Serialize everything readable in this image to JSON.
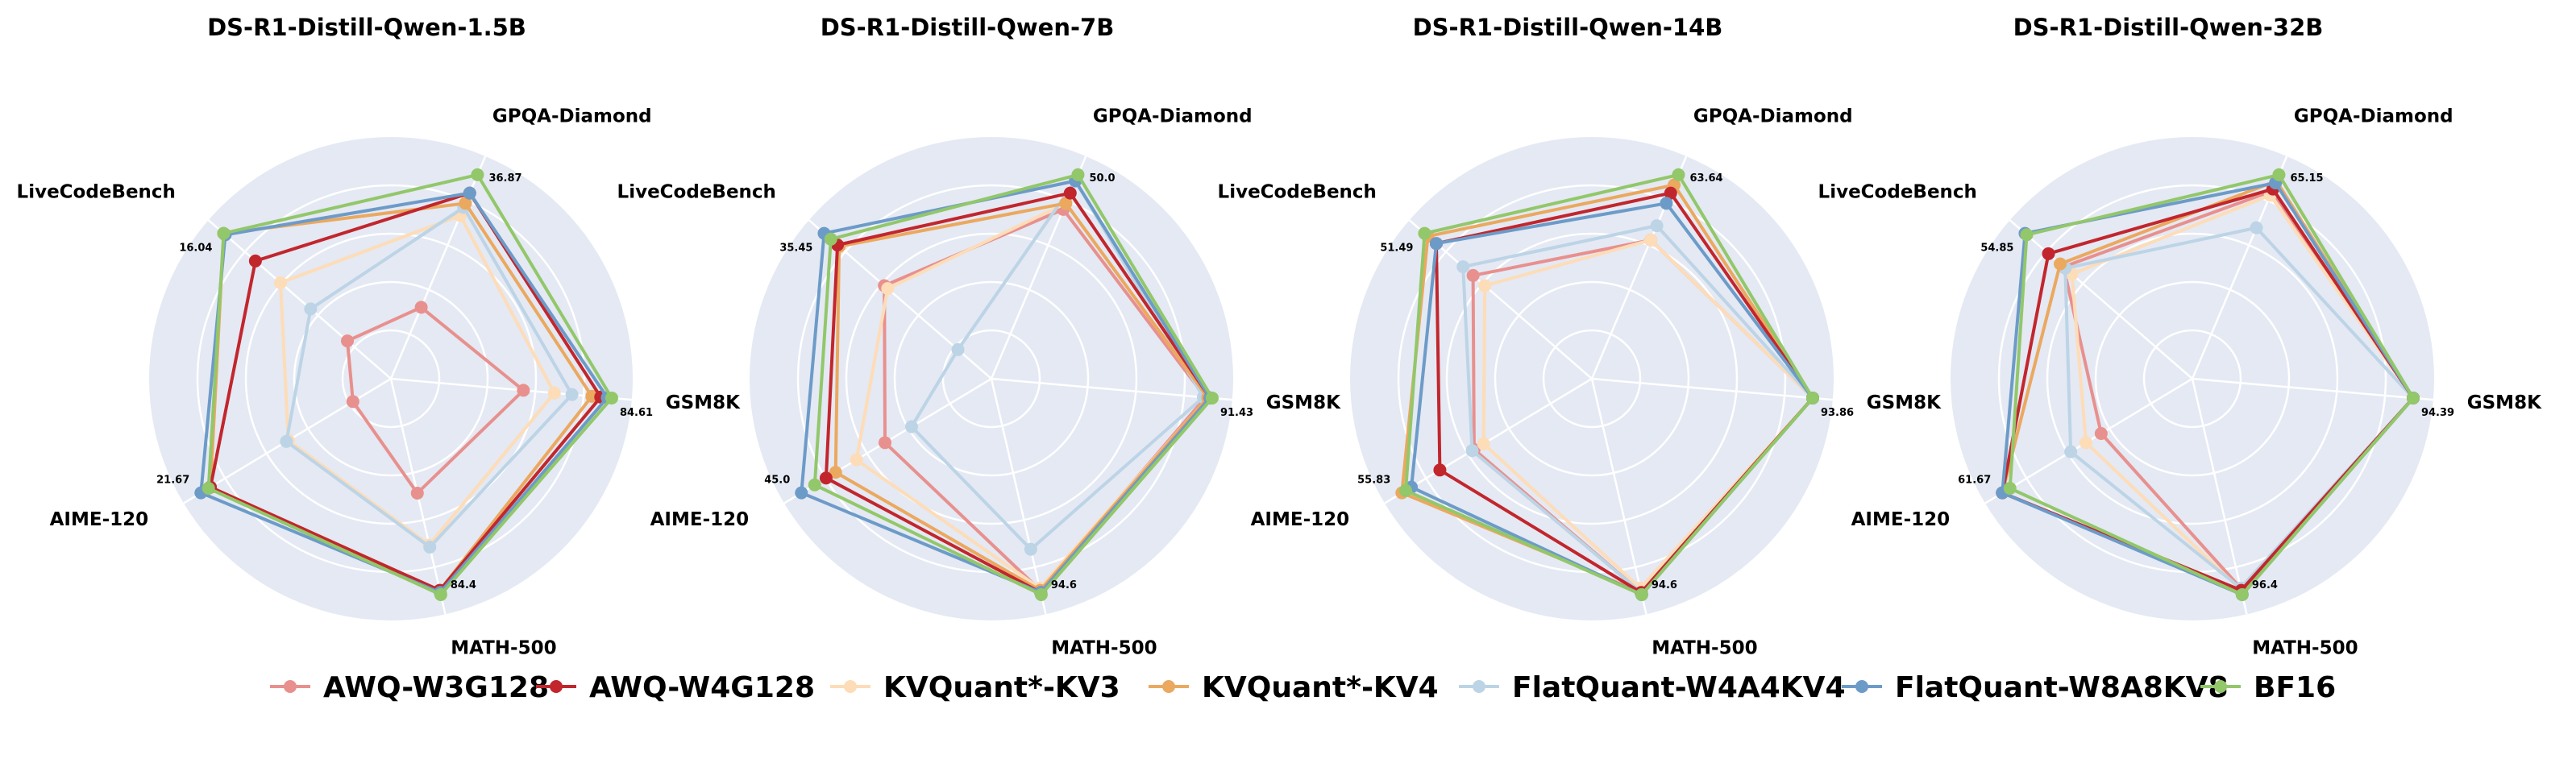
{
  "chart_data": {
    "type": "radar",
    "axes": [
      "GSM8K",
      "GPQA-Diamond",
      "LiveCodeBench",
      "AIME-120",
      "MATH-500"
    ],
    "legend": [
      "AWQ-W3G128",
      "AWQ-W4G128",
      "KVQuant*-KV3",
      "KVQuant*-KV4",
      "FlatQuant-W4A4KV4",
      "FlatQuant-W8A8KV8",
      "BF16"
    ],
    "colors": {
      "AWQ-W3G128": "#e8908e",
      "AWQ-W4G128": "#c2262d",
      "KVQuant*-KV3": "#fddcb8",
      "KVQuant*-KV4": "#eba85f",
      "FlatQuant-W4A4KV4": "#bcd4e6",
      "FlatQuant-W8A8KV8": "#6d9bc8",
      "BF16": "#92c76a"
    },
    "charts": [
      {
        "title": "DS-R1-Distill-Qwen-1.5B",
        "peaks": [
          "84.61",
          "36.87",
          "16.04",
          "21.67",
          "84.4"
        ],
        "series": [
          {
            "name": "AWQ-W3G128",
            "r": [
              0.6,
              0.35,
              0.26,
              0.2,
              0.53
            ]
          },
          {
            "name": "AWQ-W4G128",
            "r": [
              0.95,
              0.91,
              0.81,
              0.95,
              0.98
            ]
          },
          {
            "name": "KVQuant*-KV3",
            "r": [
              0.74,
              0.8,
              0.66,
              0.54,
              0.77
            ]
          },
          {
            "name": "KVQuant*-KV4",
            "r": [
              0.91,
              0.86,
              1.0,
              0.95,
              0.98
            ]
          },
          {
            "name": "FlatQuant-W4A4KV4",
            "r": [
              0.82,
              0.84,
              0.48,
              0.55,
              0.78
            ]
          },
          {
            "name": "FlatQuant-W8A8KV8",
            "r": [
              0.98,
              0.91,
              0.99,
              1.0,
              0.99
            ]
          },
          {
            "name": "BF16",
            "r": [
              1.0,
              1.0,
              1.0,
              0.96,
              1.0
            ]
          }
        ]
      },
      {
        "title": "DS-R1-Distill-Qwen-7B",
        "peaks": [
          "91.43",
          "50.0",
          "35.45",
          "45.0",
          "94.6"
        ],
        "series": [
          {
            "name": "AWQ-W3G128",
            "r": [
              0.97,
              0.83,
              0.64,
              0.56,
              0.98
            ]
          },
          {
            "name": "AWQ-W4G128",
            "r": [
              0.99,
              0.91,
              0.92,
              0.87,
              0.99
            ]
          },
          {
            "name": "KVQuant*-KV3",
            "r": [
              0.98,
              0.86,
              0.62,
              0.71,
              0.97
            ]
          },
          {
            "name": "KVQuant*-KV4",
            "r": [
              0.98,
              0.86,
              0.91,
              0.82,
              0.98
            ]
          },
          {
            "name": "FlatQuant-W4A4KV4",
            "r": [
              0.96,
              0.97,
              0.2,
              0.42,
              0.79
            ]
          },
          {
            "name": "FlatQuant-W8A8KV8",
            "r": [
              0.99,
              0.97,
              1.0,
              1.0,
              0.99
            ]
          },
          {
            "name": "BF16",
            "r": [
              1.0,
              1.0,
              0.96,
              0.93,
              1.0
            ]
          }
        ]
      },
      {
        "title": "DS-R1-Distill-Qwen-14B",
        "peaks": [
          "93.86",
          "63.64",
          "51.49",
          "55.83",
          "94.6"
        ],
        "series": [
          {
            "name": "AWQ-W3G128",
            "r": [
              1.0,
              0.68,
              0.71,
              0.62,
              0.99
            ]
          },
          {
            "name": "AWQ-W4G128",
            "r": [
              1.0,
              0.91,
              0.93,
              0.8,
              0.99
            ]
          },
          {
            "name": "KVQuant*-KV3",
            "r": [
              1.0,
              0.68,
              0.64,
              0.57,
              0.97
            ]
          },
          {
            "name": "KVQuant*-KV4",
            "r": [
              1.0,
              0.95,
              0.98,
              1.0,
              0.99
            ]
          },
          {
            "name": "FlatQuant-W4A4KV4",
            "r": [
              1.0,
              0.75,
              0.77,
              0.63,
              0.99
            ]
          },
          {
            "name": "FlatQuant-W8A8KV8",
            "r": [
              1.0,
              0.86,
              0.93,
              0.95,
              1.0
            ]
          },
          {
            "name": "BF16",
            "r": [
              1.0,
              1.0,
              1.0,
              0.98,
              1.0
            ]
          }
        ]
      },
      {
        "title": "DS-R1-Distill-Qwen-32B",
        "peaks": [
          "94.39",
          "65.15",
          "54.85",
          "61.67",
          "96.4"
        ],
        "series": [
          {
            "name": "AWQ-W3G128",
            "r": [
              1.0,
              0.92,
              0.77,
              0.48,
              0.97
            ]
          },
          {
            "name": "AWQ-W4G128",
            "r": [
              1.0,
              0.93,
              0.86,
              1.0,
              0.98
            ]
          },
          {
            "name": "KVQuant*-KV3",
            "r": [
              1.0,
              0.9,
              0.72,
              0.56,
              0.98
            ]
          },
          {
            "name": "KVQuant*-KV4",
            "r": [
              1.0,
              0.97,
              0.79,
              1.0,
              0.99
            ]
          },
          {
            "name": "FlatQuant-W4A4KV4",
            "r": [
              1.0,
              0.74,
              0.76,
              0.64,
              0.97
            ]
          },
          {
            "name": "FlatQuant-W8A8KV8",
            "r": [
              1.0,
              0.96,
              1.0,
              1.0,
              1.0
            ]
          },
          {
            "name": "BF16",
            "r": [
              1.0,
              1.0,
              0.99,
              0.96,
              1.0
            ]
          }
        ]
      }
    ]
  }
}
